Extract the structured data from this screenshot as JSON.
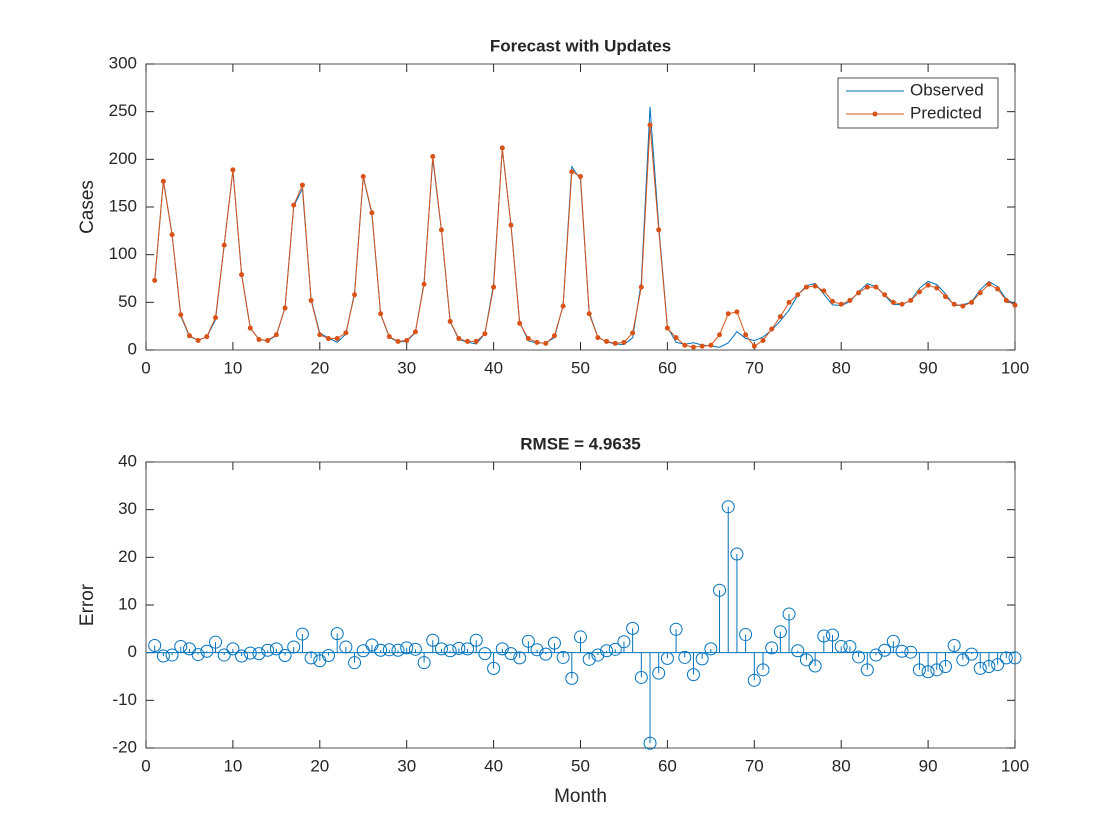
{
  "chart_data": [
    {
      "type": "line",
      "title": "Forecast with Updates",
      "ylabel": "Cases",
      "x": [
        1,
        2,
        3,
        4,
        5,
        6,
        7,
        8,
        9,
        10,
        11,
        12,
        13,
        14,
        15,
        16,
        17,
        18,
        19,
        20,
        21,
        22,
        23,
        24,
        25,
        26,
        27,
        28,
        29,
        30,
        31,
        32,
        33,
        34,
        35,
        36,
        37,
        38,
        39,
        40,
        41,
        42,
        43,
        44,
        45,
        46,
        47,
        48,
        49,
        50,
        51,
        52,
        53,
        54,
        55,
        56,
        57,
        58,
        59,
        60,
        61,
        62,
        63,
        64,
        65,
        66,
        67,
        68,
        69,
        70,
        71,
        72,
        73,
        74,
        75,
        76,
        77,
        78,
        79,
        80,
        81,
        82,
        83,
        84,
        85,
        86,
        87,
        88,
        89,
        90,
        91,
        92,
        93,
        94,
        95,
        96,
        97,
        98,
        99,
        100
      ],
      "series": [
        {
          "name": "Observed",
          "color": "#0072BD",
          "marker": false,
          "values": [
            71.5,
            177.7,
            121.5,
            35.7,
            14.2,
            10.4,
            13.7,
            31.8,
            110.5,
            188.2,
            79.7,
            23.1,
            11.2,
            9.5,
            15.2,
            44.6,
            150.8,
            169.1,
            53.1,
            17.7,
            12.6,
            8,
            16.8,
            60.1,
            181.6,
            142.4,
            37.5,
            13.4,
            8.5,
            9,
            18.3,
            71.1,
            200.4,
            125.2,
            29.6,
            11.1,
            8.2,
            6.4,
            17.2,
            69.3,
            211.2,
            131.2,
            29.1,
            9.6,
            7.4,
            7.3,
            13,
            47,
            192.4,
            178.7,
            39.4,
            13.5,
            8.6,
            6.3,
            5.7,
            12.9,
            71.2,
            255,
            130.3,
            24.2,
            8.1,
            6,
            7.6,
            5.3,
            4.2,
            2.9,
            7.4,
            19.3,
            12.2,
            9.8,
            13.6,
            21,
            30.6,
            41.9,
            57.6,
            67.5,
            69.8,
            58.5,
            47.3,
            46.7,
            50.7,
            60.9,
            69.6,
            66.5,
            57.5,
            47.6,
            47.7,
            51.9,
            64.6,
            72,
            68.6,
            58.9,
            46.5,
            47.5,
            50.3,
            63.3,
            71.9,
            66.5,
            53.1,
            48.1
          ]
        },
        {
          "name": "Predicted",
          "color": "#D95319",
          "marker": true,
          "values": [
            73,
            177,
            121,
            37,
            15,
            10,
            14,
            34,
            110,
            189,
            79,
            23,
            11,
            10,
            16,
            44,
            152,
            173,
            52,
            16,
            12,
            12,
            18,
            58,
            182,
            144,
            38,
            14,
            9,
            10,
            19,
            69,
            203,
            126,
            30,
            12,
            9,
            9,
            17,
            66,
            212,
            131,
            28,
            12,
            8,
            7,
            15,
            46,
            187,
            182,
            38,
            13,
            9,
            7,
            8,
            18,
            66,
            236,
            126,
            23,
            13,
            5,
            3,
            4,
            5,
            16,
            38,
            40,
            16,
            4,
            10,
            22,
            35,
            50,
            58,
            66,
            67,
            62,
            51,
            48,
            52,
            60,
            66,
            66,
            58,
            50,
            48,
            52,
            61,
            68,
            65,
            56,
            48,
            46,
            50,
            60,
            69,
            64,
            52,
            47
          ]
        }
      ],
      "xlim": [
        0,
        100
      ],
      "xticks": [
        0,
        10,
        20,
        30,
        40,
        50,
        60,
        70,
        80,
        90,
        100
      ],
      "ylim": [
        0,
        300
      ],
      "yticks": [
        0,
        50,
        100,
        150,
        200,
        250,
        300
      ],
      "legend": "northeast"
    },
    {
      "type": "stem",
      "title": "RMSE = 4.9635",
      "xlabel": "Month",
      "ylabel": "Error",
      "color": "#0072BD",
      "x": [
        1,
        2,
        3,
        4,
        5,
        6,
        7,
        8,
        9,
        10,
        11,
        12,
        13,
        14,
        15,
        16,
        17,
        18,
        19,
        20,
        21,
        22,
        23,
        24,
        25,
        26,
        27,
        28,
        29,
        30,
        31,
        32,
        33,
        34,
        35,
        36,
        37,
        38,
        39,
        40,
        41,
        42,
        43,
        44,
        45,
        46,
        47,
        48,
        49,
        50,
        51,
        52,
        53,
        54,
        55,
        56,
        57,
        58,
        59,
        60,
        61,
        62,
        63,
        64,
        65,
        66,
        67,
        68,
        69,
        70,
        71,
        72,
        73,
        74,
        75,
        76,
        77,
        78,
        79,
        80,
        81,
        82,
        83,
        84,
        85,
        86,
        87,
        88,
        89,
        90,
        91,
        92,
        93,
        94,
        95,
        96,
        97,
        98,
        99,
        100
      ],
      "values": [
        1.5,
        -0.7,
        -0.5,
        1.3,
        0.8,
        -0.4,
        0.3,
        2.2,
        -0.5,
        0.8,
        -0.7,
        -0.1,
        -0.2,
        0.5,
        0.8,
        -0.6,
        1.2,
        3.9,
        -1.1,
        -1.7,
        -0.6,
        4,
        1.2,
        -2.1,
        0.4,
        1.6,
        0.5,
        0.6,
        0.5,
        1,
        0.7,
        -2.1,
        2.6,
        0.8,
        0.4,
        0.9,
        0.8,
        2.6,
        -0.2,
        -3.3,
        0.8,
        -0.2,
        -1.1,
        2.4,
        0.6,
        -0.3,
        2,
        -1,
        -5.4,
        3.3,
        -1.4,
        -0.5,
        0.4,
        0.7,
        2.3,
        5.1,
        -5.2,
        -19,
        -4.3,
        -1.2,
        4.9,
        -1,
        -4.6,
        -1.3,
        0.8,
        13.1,
        30.6,
        20.7,
        3.8,
        -5.8,
        -3.6,
        1,
        4.4,
        8.1,
        0.4,
        -1.5,
        -2.8,
        3.5,
        3.7,
        1.3,
        1.3,
        -0.9,
        -3.6,
        -0.5,
        0.5,
        2.4,
        0.3,
        0.1,
        -3.6,
        -4,
        -3.6,
        -2.9,
        1.5,
        -1.5,
        -0.3,
        -3.3,
        -2.9,
        -2.5,
        -1.1,
        -1.1
      ],
      "xlim": [
        0,
        100
      ],
      "xticks": [
        0,
        10,
        20,
        30,
        40,
        50,
        60,
        70,
        80,
        90,
        100
      ],
      "ylim": [
        -20,
        40
      ],
      "yticks": [
        -20,
        -10,
        0,
        10,
        20,
        30,
        40
      ]
    }
  ]
}
